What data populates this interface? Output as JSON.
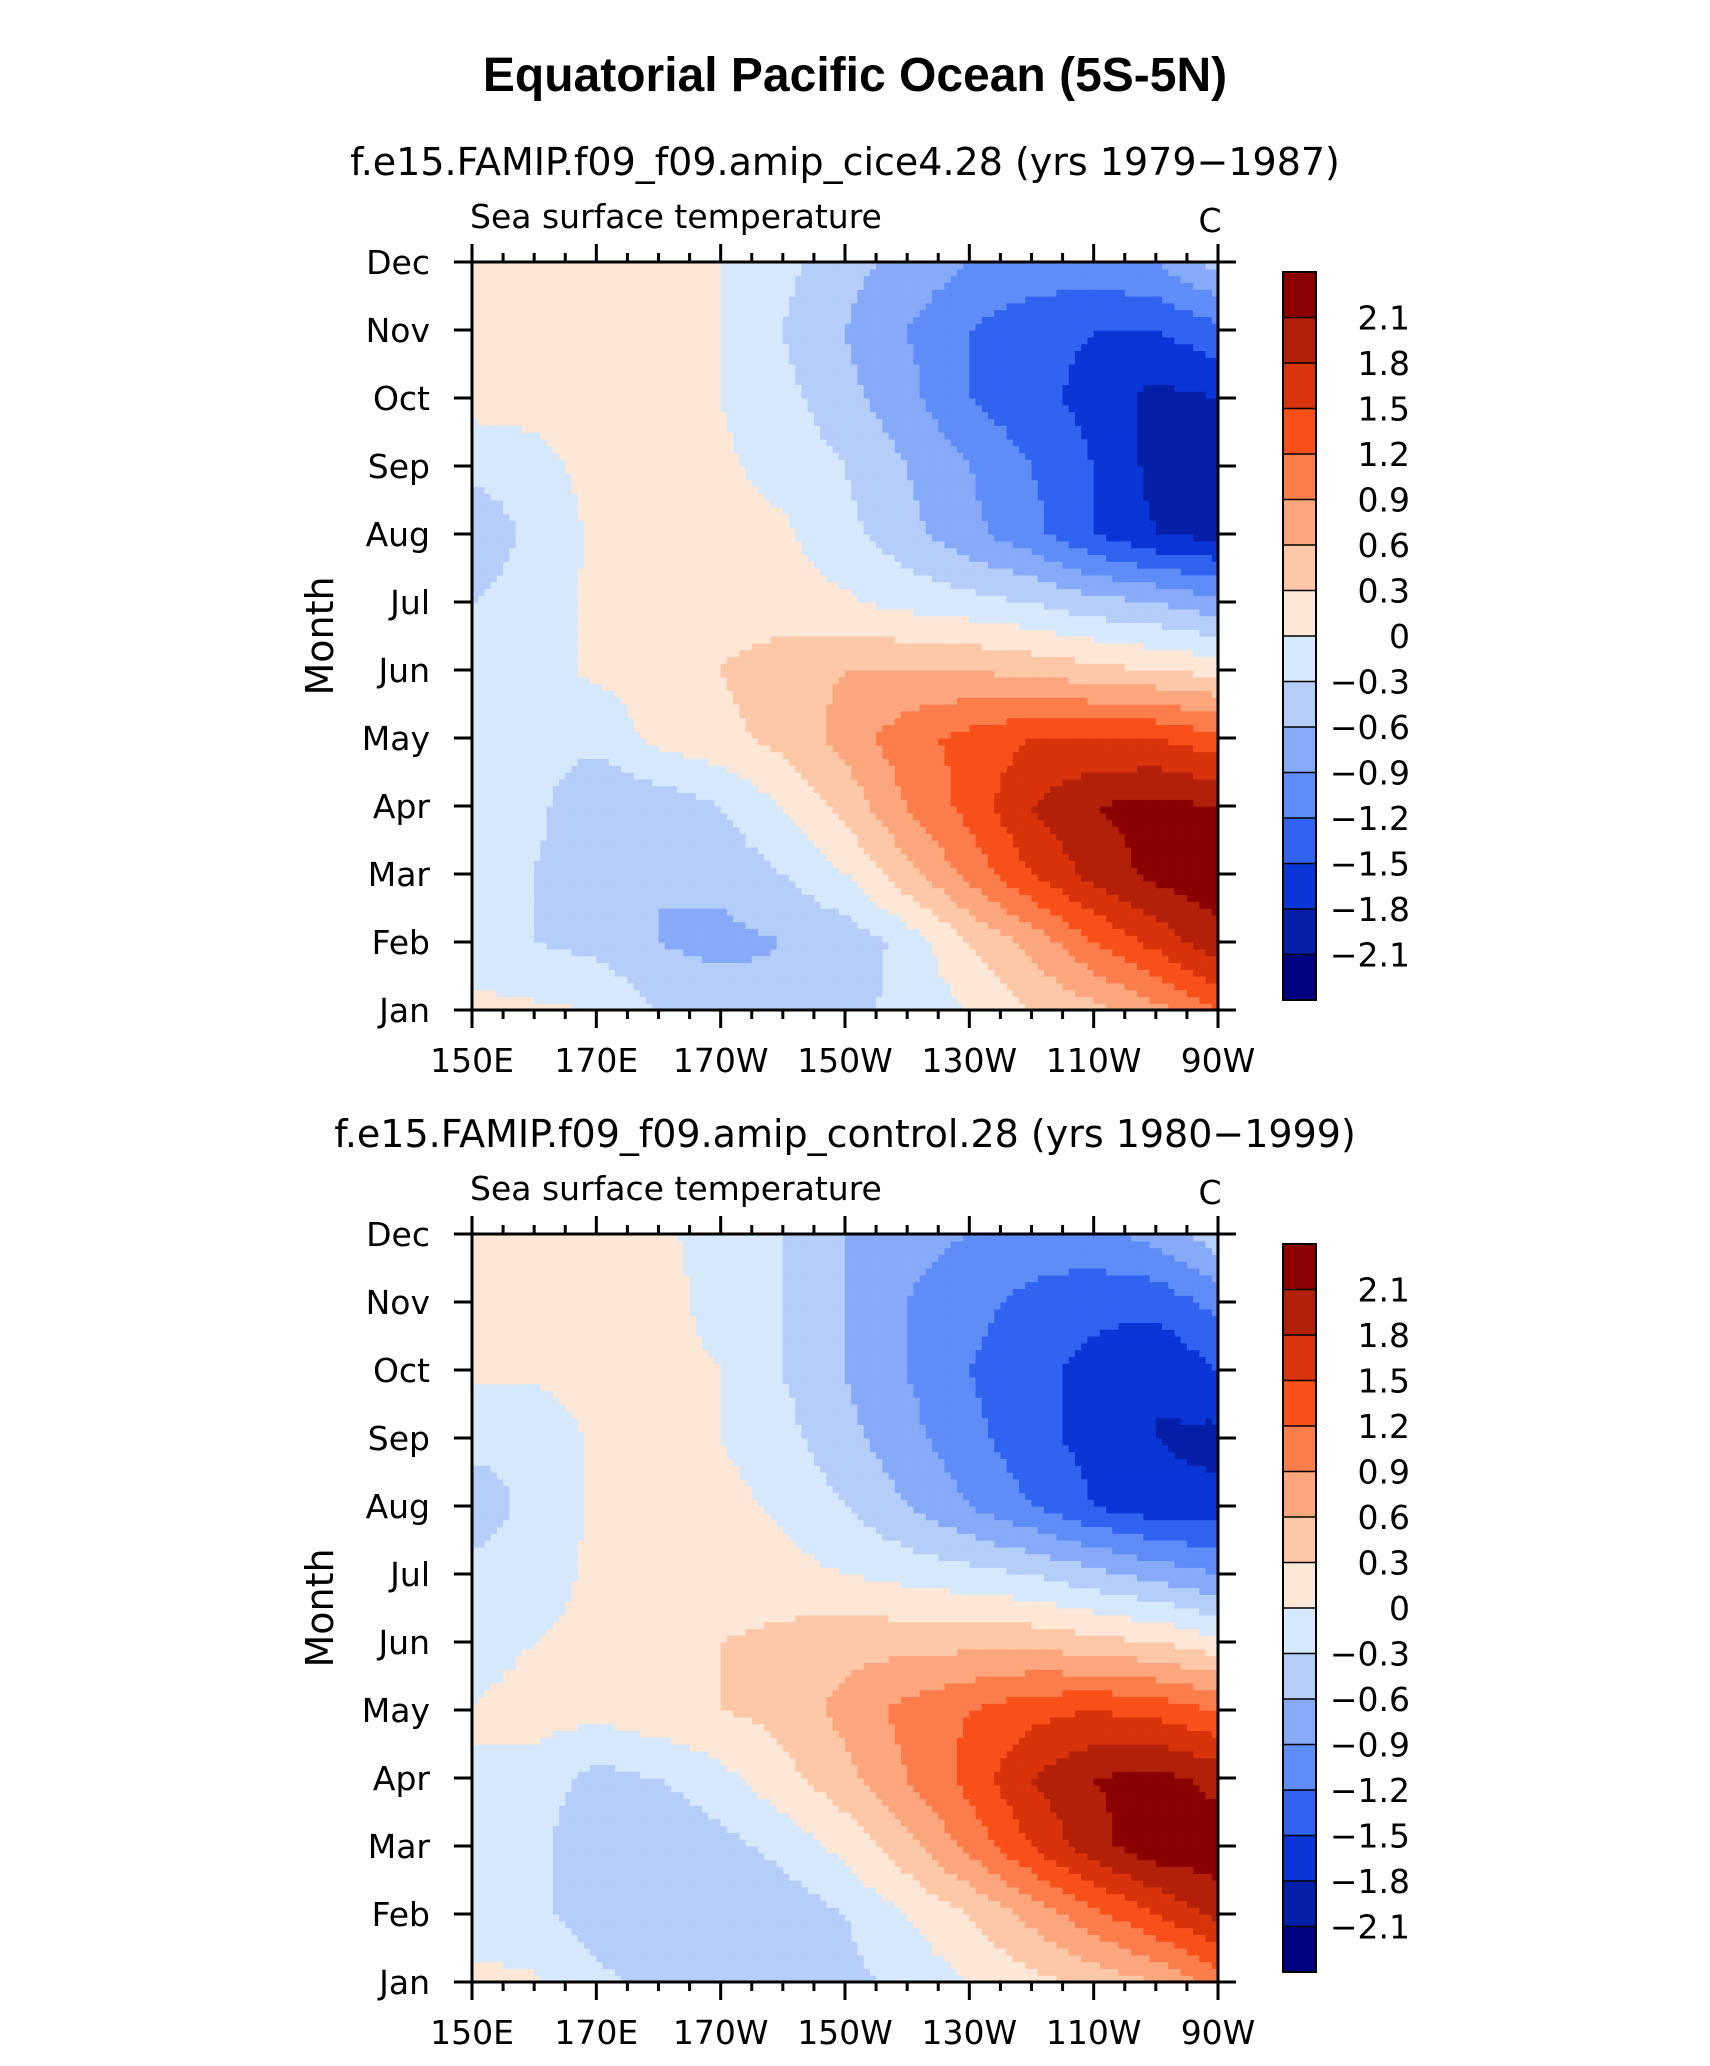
{
  "title": "Equatorial Pacific Ocean (5S-5N)",
  "colorbar": {
    "levels": [
      "2.1",
      "1.8",
      "1.5",
      "1.2",
      "0.9",
      "0.6",
      "0.3",
      "0",
      "−0.3",
      "−0.6",
      "−0.9",
      "−1.2",
      "−1.5",
      "−1.8",
      "−2.1"
    ],
    "colors": [
      "#8b0000",
      "#b2200a",
      "#d8330a",
      "#f85018",
      "#fc7d4c",
      "#fca67e",
      "#fdc8a8",
      "#fde7d6",
      "#d6e8fb",
      "#b4cdf9",
      "#86a9f8",
      "#5e8df7",
      "#2f63f0",
      "#0a36d8",
      "#061fa8",
      "#000080"
    ]
  },
  "chart_data": [
    {
      "type": "heatmap",
      "title": "f.e15.FAMIP.f09_f09.amip_cice4.28 (yrs 1979−1987)",
      "left_string": "Sea surface temperature",
      "units": "C",
      "xlabel": "",
      "ylabel": "Month",
      "x_ticks": [
        "150E",
        "170E",
        "170W",
        "150W",
        "130W",
        "110W",
        "90W"
      ],
      "x_values_lon": [
        150,
        170,
        190,
        210,
        230,
        250,
        270
      ],
      "y_ticks": [
        "Jan",
        "Feb",
        "Mar",
        "Apr",
        "May",
        "Jun",
        "Jul",
        "Aug",
        "Sep",
        "Oct",
        "Nov",
        "Dec"
      ],
      "xlim": [
        150,
        270
      ],
      "ylim": [
        1,
        12
      ],
      "lon": [
        150,
        160,
        170,
        180,
        190,
        200,
        210,
        220,
        230,
        240,
        250,
        260,
        270
      ],
      "values": [
        [
          0.1,
          0.05,
          0.0,
          -0.3,
          -0.4,
          -0.5,
          -0.4,
          -0.2,
          0.0,
          0.3,
          0.5,
          0.8,
          1.2
        ],
        [
          -0.2,
          -0.3,
          -0.4,
          -0.6,
          -0.7,
          -0.6,
          -0.5,
          -0.2,
          0.3,
          0.7,
          1.2,
          1.6,
          2.0
        ],
        [
          -0.2,
          -0.3,
          -0.6,
          -0.6,
          -0.5,
          -0.3,
          0.0,
          0.5,
          1.0,
          1.5,
          1.9,
          2.2,
          2.3
        ],
        [
          -0.1,
          -0.2,
          -0.6,
          -0.5,
          -0.3,
          0.0,
          0.4,
          0.9,
          1.3,
          1.8,
          2.1,
          2.2,
          2.1
        ],
        [
          -0.1,
          -0.2,
          -0.2,
          0.1,
          0.2,
          0.4,
          0.7,
          1.1,
          1.3,
          1.5,
          1.5,
          1.5,
          1.3
        ],
        [
          -0.2,
          -0.1,
          0.05,
          0.1,
          0.3,
          0.5,
          0.6,
          0.6,
          0.6,
          0.5,
          0.4,
          0.3,
          0.2
        ],
        [
          -0.3,
          -0.1,
          0.05,
          0.1,
          0.15,
          0.1,
          0.05,
          -0.1,
          -0.2,
          -0.3,
          -0.5,
          -0.6,
          -0.8
        ],
        [
          -0.6,
          -0.2,
          0.05,
          0.1,
          0.1,
          0.05,
          -0.2,
          -0.5,
          -0.8,
          -1.1,
          -1.5,
          -1.8,
          -1.9
        ],
        [
          -0.2,
          -0.1,
          0.1,
          0.1,
          0.05,
          -0.1,
          -0.3,
          -0.6,
          -0.9,
          -1.2,
          -1.5,
          -1.9,
          -2.0
        ],
        [
          0.1,
          0.1,
          0.1,
          0.1,
          0.0,
          -0.2,
          -0.5,
          -0.8,
          -1.2,
          -1.4,
          -1.6,
          -1.9,
          -1.8
        ],
        [
          0.1,
          0.3,
          0.1,
          0.1,
          0.0,
          -0.3,
          -0.6,
          -0.9,
          -1.2,
          -1.4,
          -1.5,
          -1.5,
          -1.3
        ],
        [
          0.1,
          0.1,
          0.1,
          0.1,
          0.0,
          -0.2,
          -0.5,
          -0.7,
          -0.9,
          -1.0,
          -1.0,
          -0.9,
          -0.5
        ]
      ]
    },
    {
      "type": "heatmap",
      "title": "f.e15.FAMIP.f09_f09.amip_control.28 (yrs 1980−1999)",
      "left_string": "Sea surface temperature",
      "units": "C",
      "xlabel": "",
      "ylabel": "Month",
      "x_ticks": [
        "150E",
        "170E",
        "170W",
        "150W",
        "130W",
        "110W",
        "90W"
      ],
      "x_values_lon": [
        150,
        170,
        190,
        210,
        230,
        250,
        270
      ],
      "y_ticks": [
        "Jan",
        "Feb",
        "Mar",
        "Apr",
        "May",
        "Jun",
        "Jul",
        "Aug",
        "Sep",
        "Oct",
        "Nov",
        "Dec"
      ],
      "xlim": [
        150,
        270
      ],
      "ylim": [
        1,
        12
      ],
      "lon": [
        150,
        160,
        170,
        180,
        190,
        200,
        210,
        220,
        230,
        240,
        250,
        260,
        270
      ],
      "values": [
        [
          0.05,
          0.05,
          -0.2,
          -0.4,
          -0.5,
          -0.5,
          -0.4,
          -0.2,
          0.0,
          0.2,
          0.4,
          0.6,
          1.0
        ],
        [
          -0.1,
          -0.2,
          -0.5,
          -0.6,
          -0.6,
          -0.5,
          -0.3,
          0.0,
          0.3,
          0.7,
          1.1,
          1.5,
          1.9
        ],
        [
          -0.1,
          -0.2,
          -0.6,
          -0.6,
          -0.4,
          -0.2,
          0.1,
          0.5,
          1.0,
          1.5,
          2.0,
          2.3,
          2.3
        ],
        [
          0.0,
          -0.1,
          -0.4,
          -0.3,
          -0.1,
          0.2,
          0.5,
          0.9,
          1.3,
          1.8,
          2.1,
          2.2,
          2.0
        ],
        [
          0.0,
          0.1,
          0.1,
          0.2,
          0.3,
          0.4,
          0.7,
          1.0,
          1.2,
          1.4,
          1.5,
          1.4,
          1.2
        ],
        [
          -0.1,
          0.0,
          0.05,
          0.1,
          0.3,
          0.4,
          0.5,
          0.5,
          0.5,
          0.5,
          0.4,
          0.3,
          0.1
        ],
        [
          -0.2,
          -0.1,
          0.05,
          0.1,
          0.1,
          0.1,
          0.0,
          -0.1,
          -0.2,
          -0.3,
          -0.5,
          -0.7,
          -0.9
        ],
        [
          -0.5,
          -0.2,
          0.05,
          0.1,
          0.1,
          -0.05,
          -0.3,
          -0.6,
          -0.9,
          -1.2,
          -1.5,
          -1.7,
          -1.7
        ],
        [
          -0.2,
          -0.2,
          0.05,
          0.1,
          0.0,
          -0.2,
          -0.5,
          -0.8,
          -1.1,
          -1.4,
          -1.6,
          -1.8,
          -1.9
        ],
        [
          0.05,
          0.05,
          0.1,
          0.1,
          0.0,
          -0.3,
          -0.6,
          -0.9,
          -1.2,
          -1.4,
          -1.6,
          -1.8,
          -1.5
        ],
        [
          0.1,
          0.1,
          0.1,
          0.1,
          -0.1,
          -0.3,
          -0.6,
          -0.9,
          -1.1,
          -1.3,
          -1.4,
          -1.4,
          -1.1
        ],
        [
          0.1,
          0.1,
          0.1,
          0.05,
          -0.1,
          -0.3,
          -0.6,
          -0.8,
          -0.9,
          -1.0,
          -1.0,
          -0.8,
          -0.4
        ]
      ]
    }
  ]
}
